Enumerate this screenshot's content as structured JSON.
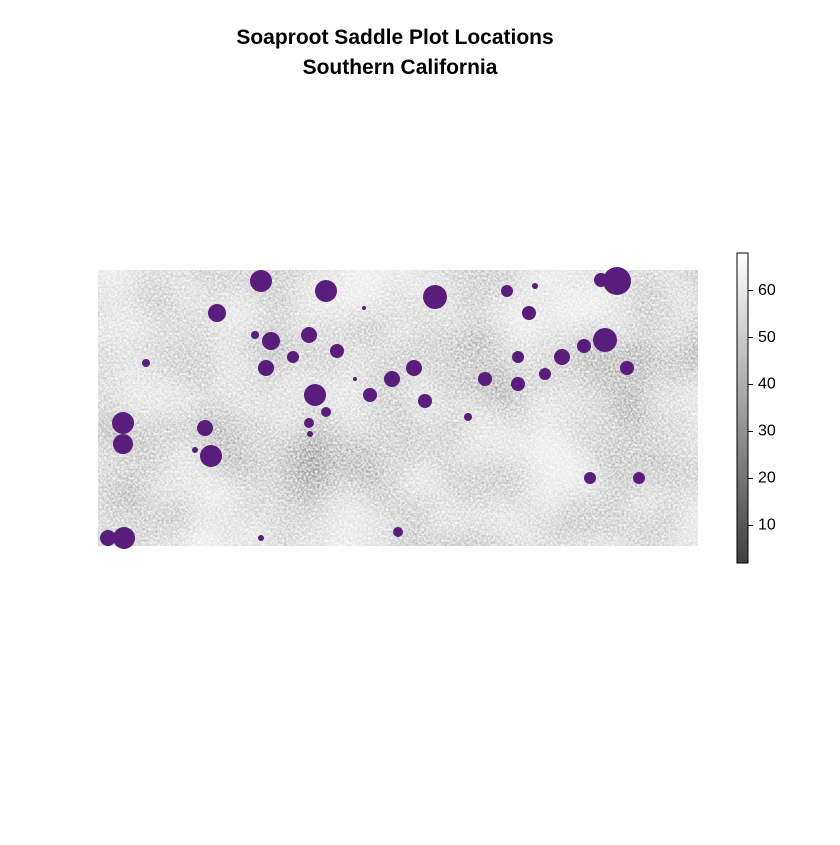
{
  "chart_data": {
    "type": "raster",
    "title": "Soaproot Saddle Plot Locations",
    "subtitle": "Southern California",
    "point_color": "#591d7b",
    "colorbar": {
      "lim": [
        2,
        68
      ],
      "ticks": [
        10,
        20,
        30,
        40,
        50,
        60
      ],
      "low_color": "#404040",
      "high_color": "#ffffff"
    }
  }
}
